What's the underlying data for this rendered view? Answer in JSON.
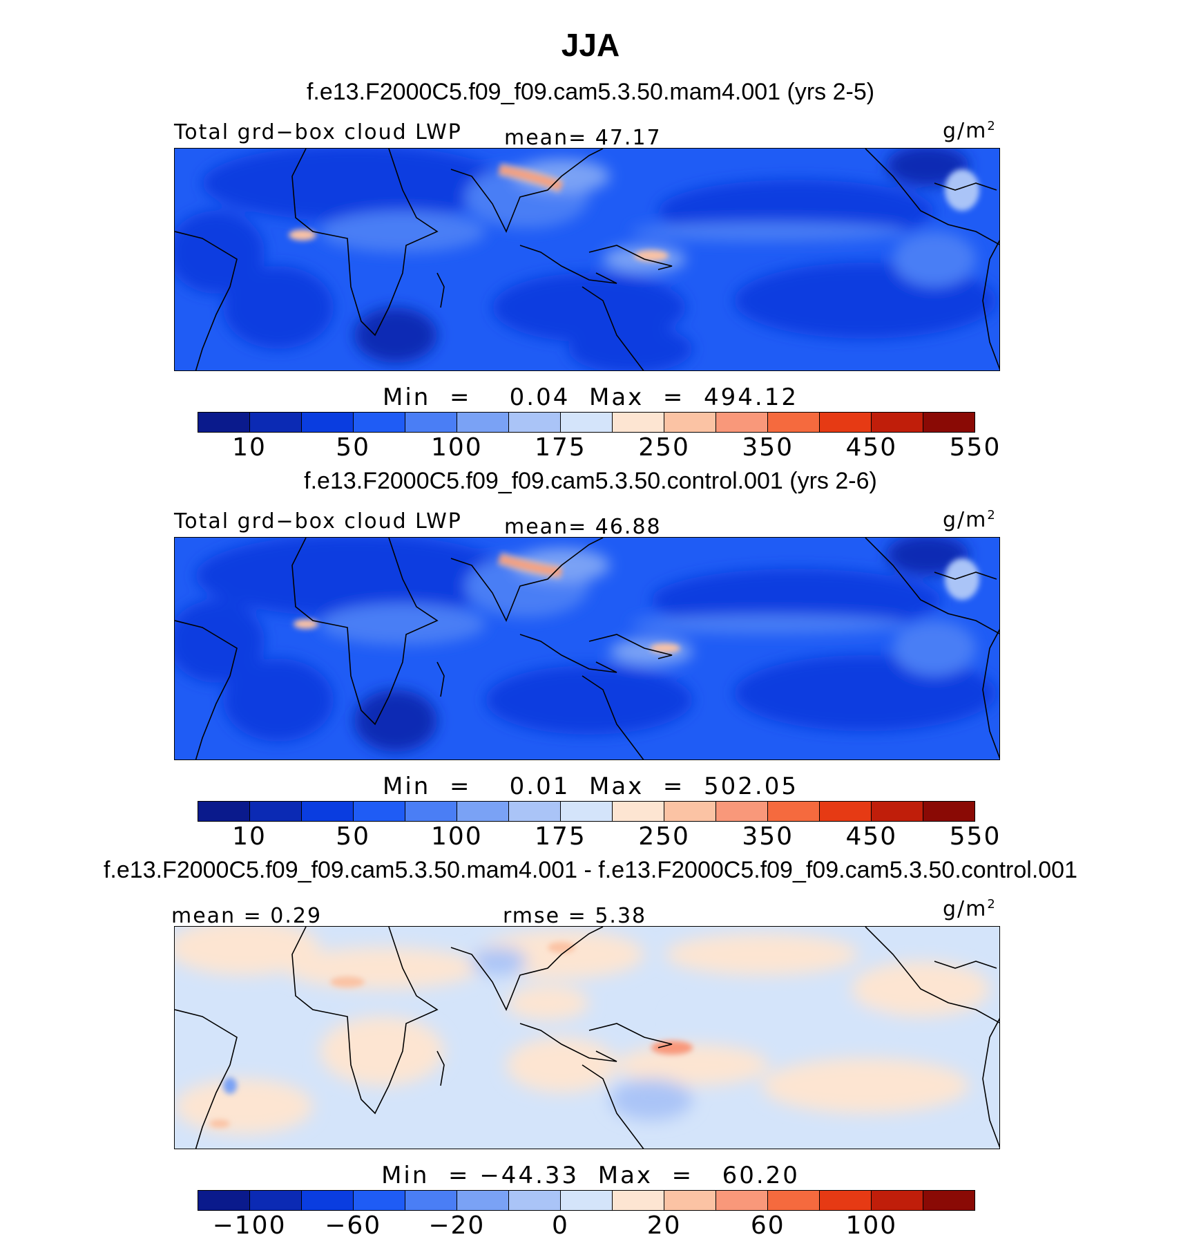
{
  "title": "JJA",
  "colors": {
    "abs_scale": [
      "#0a1a8c",
      "#0b2ab4",
      "#0a3de0",
      "#1f5cf5",
      "#4a7ef5",
      "#7aa2f5",
      "#aac4f7",
      "#d4e4fa",
      "#fde5d2",
      "#fbc3a4",
      "#f9987a",
      "#f56a3e",
      "#e63a14",
      "#c01e0a",
      "#8a0a05"
    ],
    "diff_scale": [
      "#0a1a8c",
      "#0b2ab4",
      "#0a3de0",
      "#1f5cf5",
      "#4a7ef5",
      "#7aa2f5",
      "#aac4f7",
      "#d4e4fa",
      "#fde5d2",
      "#fbc3a4",
      "#f9987a",
      "#f56a3e",
      "#e63a14",
      "#c01e0a",
      "#8a0a05"
    ]
  },
  "panels": [
    {
      "case": "f.e13.F2000C5.f09_f09.cam5.3.50.mam4.001 (yrs 2-5)",
      "var_label": "Total grd−box cloud LWP",
      "stat_label": "mean=  47.17",
      "units": "g/m",
      "units_exp": "2",
      "minmax": "Min  =    0.04  Max  =  494.12",
      "ticks": [
        "10",
        "50",
        "100",
        "175",
        "250",
        "350",
        "450",
        "550"
      ]
    },
    {
      "case": "f.e13.F2000C5.f09_f09.cam5.3.50.control.001 (yrs 2-6)",
      "var_label": "Total grd−box cloud LWP",
      "stat_label": "mean=  46.88",
      "units": "g/m",
      "units_exp": "2",
      "minmax": "Min  =    0.01  Max  =  502.05",
      "ticks": [
        "10",
        "50",
        "100",
        "175",
        "250",
        "350",
        "450",
        "550"
      ]
    },
    {
      "case": "f.e13.F2000C5.f09_f09.cam5.3.50.mam4.001 - f.e13.F2000C5.f09_f09.cam5.3.50.control.001",
      "var_label": "mean =   0.29",
      "stat_label": "rmse =   5.38",
      "units": "g/m",
      "units_exp": "2",
      "minmax": "Min  = −44.33  Max  =   60.20",
      "ticks": [
        "−100",
        "−60",
        "−20",
        "0",
        "20",
        "60",
        "100"
      ]
    }
  ]
}
